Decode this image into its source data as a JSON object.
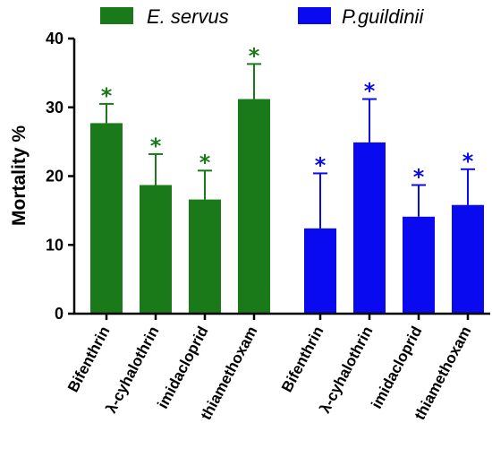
{
  "chart_data": {
    "type": "bar",
    "ylabel": "Mortality %",
    "ylim": [
      0,
      40
    ],
    "yticks": [
      0,
      10,
      20,
      30,
      40
    ],
    "legend_position": "top",
    "series": [
      {
        "name": "E. servus",
        "color": "#1a7a1a",
        "categories": [
          "Bifenthrin",
          "λ-cyhalothrin",
          "imidacloprid",
          "thiamethoxam"
        ],
        "values": [
          27.7,
          18.7,
          16.6,
          31.2
        ],
        "error": [
          2.8,
          4.5,
          4.2,
          5.1
        ],
        "significance": [
          "*",
          "*",
          "*",
          "*"
        ]
      },
      {
        "name": "P.guildinii",
        "color": "#0a0af0",
        "categories": [
          "Bifenthrin",
          "λ-cyhalothrin",
          "imidacloprid",
          "thiamethoxam"
        ],
        "values": [
          12.4,
          24.9,
          14.1,
          15.8
        ],
        "error": [
          8.0,
          6.3,
          4.6,
          5.2
        ],
        "significance": [
          "*",
          "*",
          "*",
          "*"
        ]
      }
    ]
  }
}
